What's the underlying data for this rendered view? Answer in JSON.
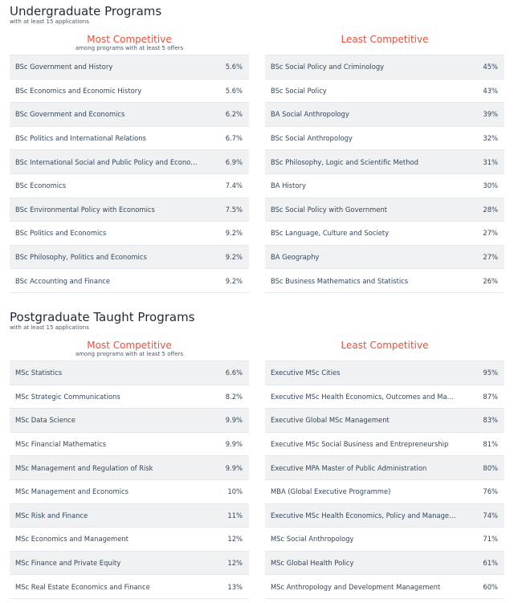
{
  "undergrad": {
    "title": "Undergraduate Programs",
    "subtitle": "with at least 15 applications",
    "most": {
      "title": "Most Competitive",
      "note": "among programs with at least 5 offers",
      "rows": [
        {
          "name": "BSc Government and History",
          "value": "5.6%"
        },
        {
          "name": "BSc Economics and Economic History",
          "value": "5.6%"
        },
        {
          "name": "BSc Government and Economics",
          "value": "6.2%"
        },
        {
          "name": "BSc Politics and International Relations",
          "value": "6.7%"
        },
        {
          "name": "BSc International Social and Public Policy and Economics",
          "value": "6.9%"
        },
        {
          "name": "BSc Economics",
          "value": "7.4%"
        },
        {
          "name": "BSc Environmental Policy with Economics",
          "value": "7.5%"
        },
        {
          "name": "BSc Politics and Economics",
          "value": "9.2%"
        },
        {
          "name": "BSc Philosophy, Politics and Economics",
          "value": "9.2%"
        },
        {
          "name": "BSc Accounting and Finance",
          "value": "9.2%"
        }
      ]
    },
    "least": {
      "title": "Least Competitive",
      "note": "",
      "rows": [
        {
          "name": "BSc Social Policy and Criminology",
          "value": "45%"
        },
        {
          "name": "BSc Social Policy",
          "value": "43%"
        },
        {
          "name": "BA Social Anthropology",
          "value": "39%"
        },
        {
          "name": "BSc Social Anthropology",
          "value": "32%"
        },
        {
          "name": "BSc Philosophy, Logic and Scientific Method",
          "value": "31%"
        },
        {
          "name": "BA History",
          "value": "30%"
        },
        {
          "name": "BSc Social Policy with Government",
          "value": "28%"
        },
        {
          "name": "BSc Language, Culture and Society",
          "value": "27%"
        },
        {
          "name": "BA Geography",
          "value": "27%"
        },
        {
          "name": "BSc Business Mathematics and Statistics",
          "value": "26%"
        }
      ]
    }
  },
  "postgrad": {
    "title": "Postgraduate Taught Programs",
    "subtitle": "with at least 15 applications",
    "most": {
      "title": "Most Competitive",
      "note": "among programs with at least 5 offers",
      "rows": [
        {
          "name": "MSc Statistics",
          "value": "6.6%"
        },
        {
          "name": "MSc Strategic Communications",
          "value": "8.2%"
        },
        {
          "name": "MSc Data Science",
          "value": "9.9%"
        },
        {
          "name": "MSc Financial Mathematics",
          "value": "9.9%"
        },
        {
          "name": "MSc Management and Regulation of Risk",
          "value": "9.9%"
        },
        {
          "name": "MSc Management and Economics",
          "value": "10%"
        },
        {
          "name": "MSc Risk and Finance",
          "value": "11%"
        },
        {
          "name": "MSc Economics and Management",
          "value": "12%"
        },
        {
          "name": "MSc Finance and Private Equity",
          "value": "12%"
        },
        {
          "name": "MSc Real Estate Economics and Finance",
          "value": "13%"
        }
      ]
    },
    "least": {
      "title": "Least Competitive",
      "note": "",
      "rows": [
        {
          "name": "Executive MSc Cities",
          "value": "95%"
        },
        {
          "name": "Executive MSc Health Economics, Outcomes and Management",
          "value": "87%"
        },
        {
          "name": "Executive Global MSc Management",
          "value": "83%"
        },
        {
          "name": "Executive MSc Social Business and Entrepreneurship",
          "value": "81%"
        },
        {
          "name": "Executive MPA Master of Public Administration",
          "value": "80%"
        },
        {
          "name": "MBA (Global Executive Programme)",
          "value": "76%"
        },
        {
          "name": "Executive MSc Health Economics, Policy and Management",
          "value": "74%"
        },
        {
          "name": "MSc Social Anthropology",
          "value": "71%"
        },
        {
          "name": "MSc Global Health Policy",
          "value": "61%"
        },
        {
          "name": "MSc Anthropology and Development Management",
          "value": "60%"
        }
      ]
    }
  },
  "colors": {
    "accent": "#e8503a",
    "row_alt": "#f0f1f3"
  }
}
